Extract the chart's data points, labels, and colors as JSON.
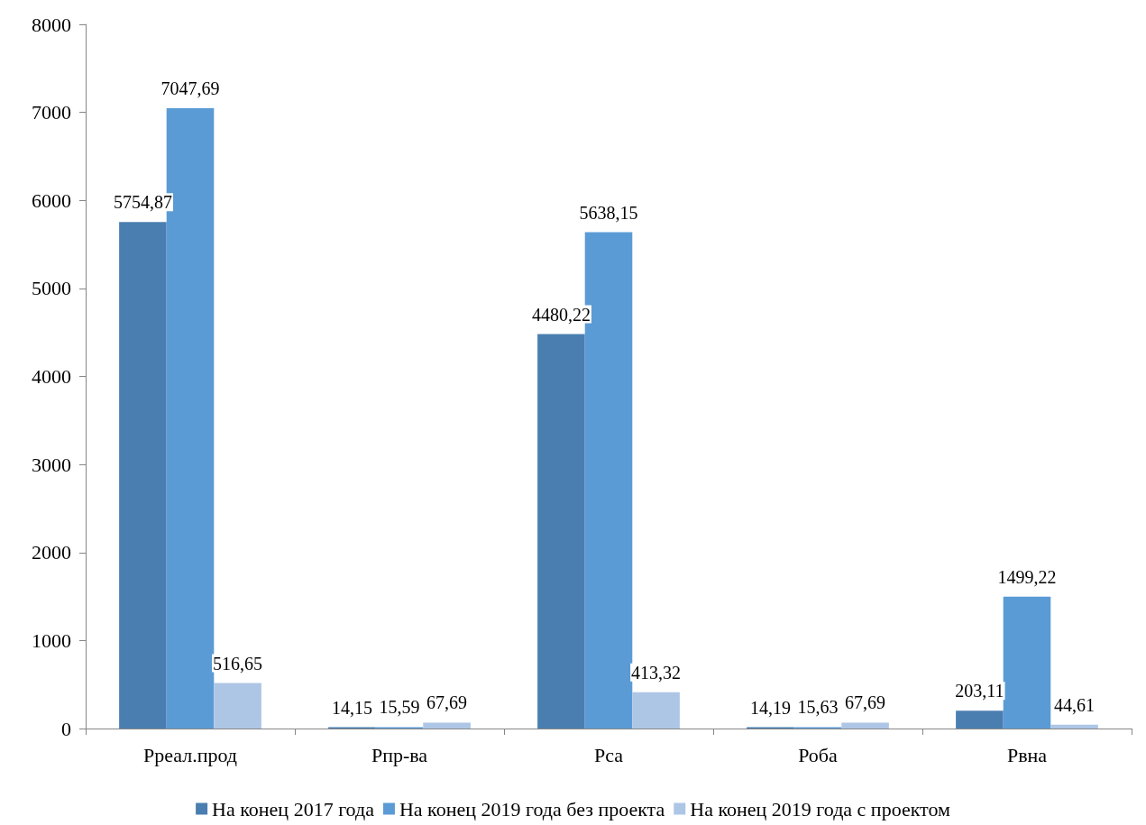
{
  "chart_data": {
    "type": "bar",
    "categories": [
      "Рреал.прод",
      "Рпр-ва",
      "Рса",
      "Роба",
      "Рвна"
    ],
    "series": [
      {
        "name": "На конец 2017 года",
        "color": "#4a7eb0",
        "values": [
          5754.87,
          14.15,
          4480.22,
          14.19,
          203.11
        ],
        "value_labels": [
          "5754,87",
          "14,15",
          "4480,22",
          "14,19",
          "203,11"
        ]
      },
      {
        "name": "На конец 2019 года без проекта",
        "color": "#5b9bd5",
        "values": [
          7047.69,
          15.59,
          5638.15,
          15.63,
          1499.22
        ],
        "value_labels": [
          "7047,69",
          "15,59",
          "5638,15",
          "15,63",
          "1499,22"
        ]
      },
      {
        "name": "На конец 2019 года с проектом",
        "color": "#adc6e6",
        "values": [
          516.65,
          67.69,
          413.32,
          67.69,
          44.61
        ],
        "value_labels": [
          "516,65",
          "67,69",
          "413,32",
          "67,69",
          "44,61"
        ]
      }
    ],
    "ylim": [
      0,
      8000
    ],
    "yticks": [
      0,
      1000,
      2000,
      3000,
      4000,
      5000,
      6000,
      7000,
      8000
    ],
    "grid": false,
    "legend": "bottom"
  }
}
